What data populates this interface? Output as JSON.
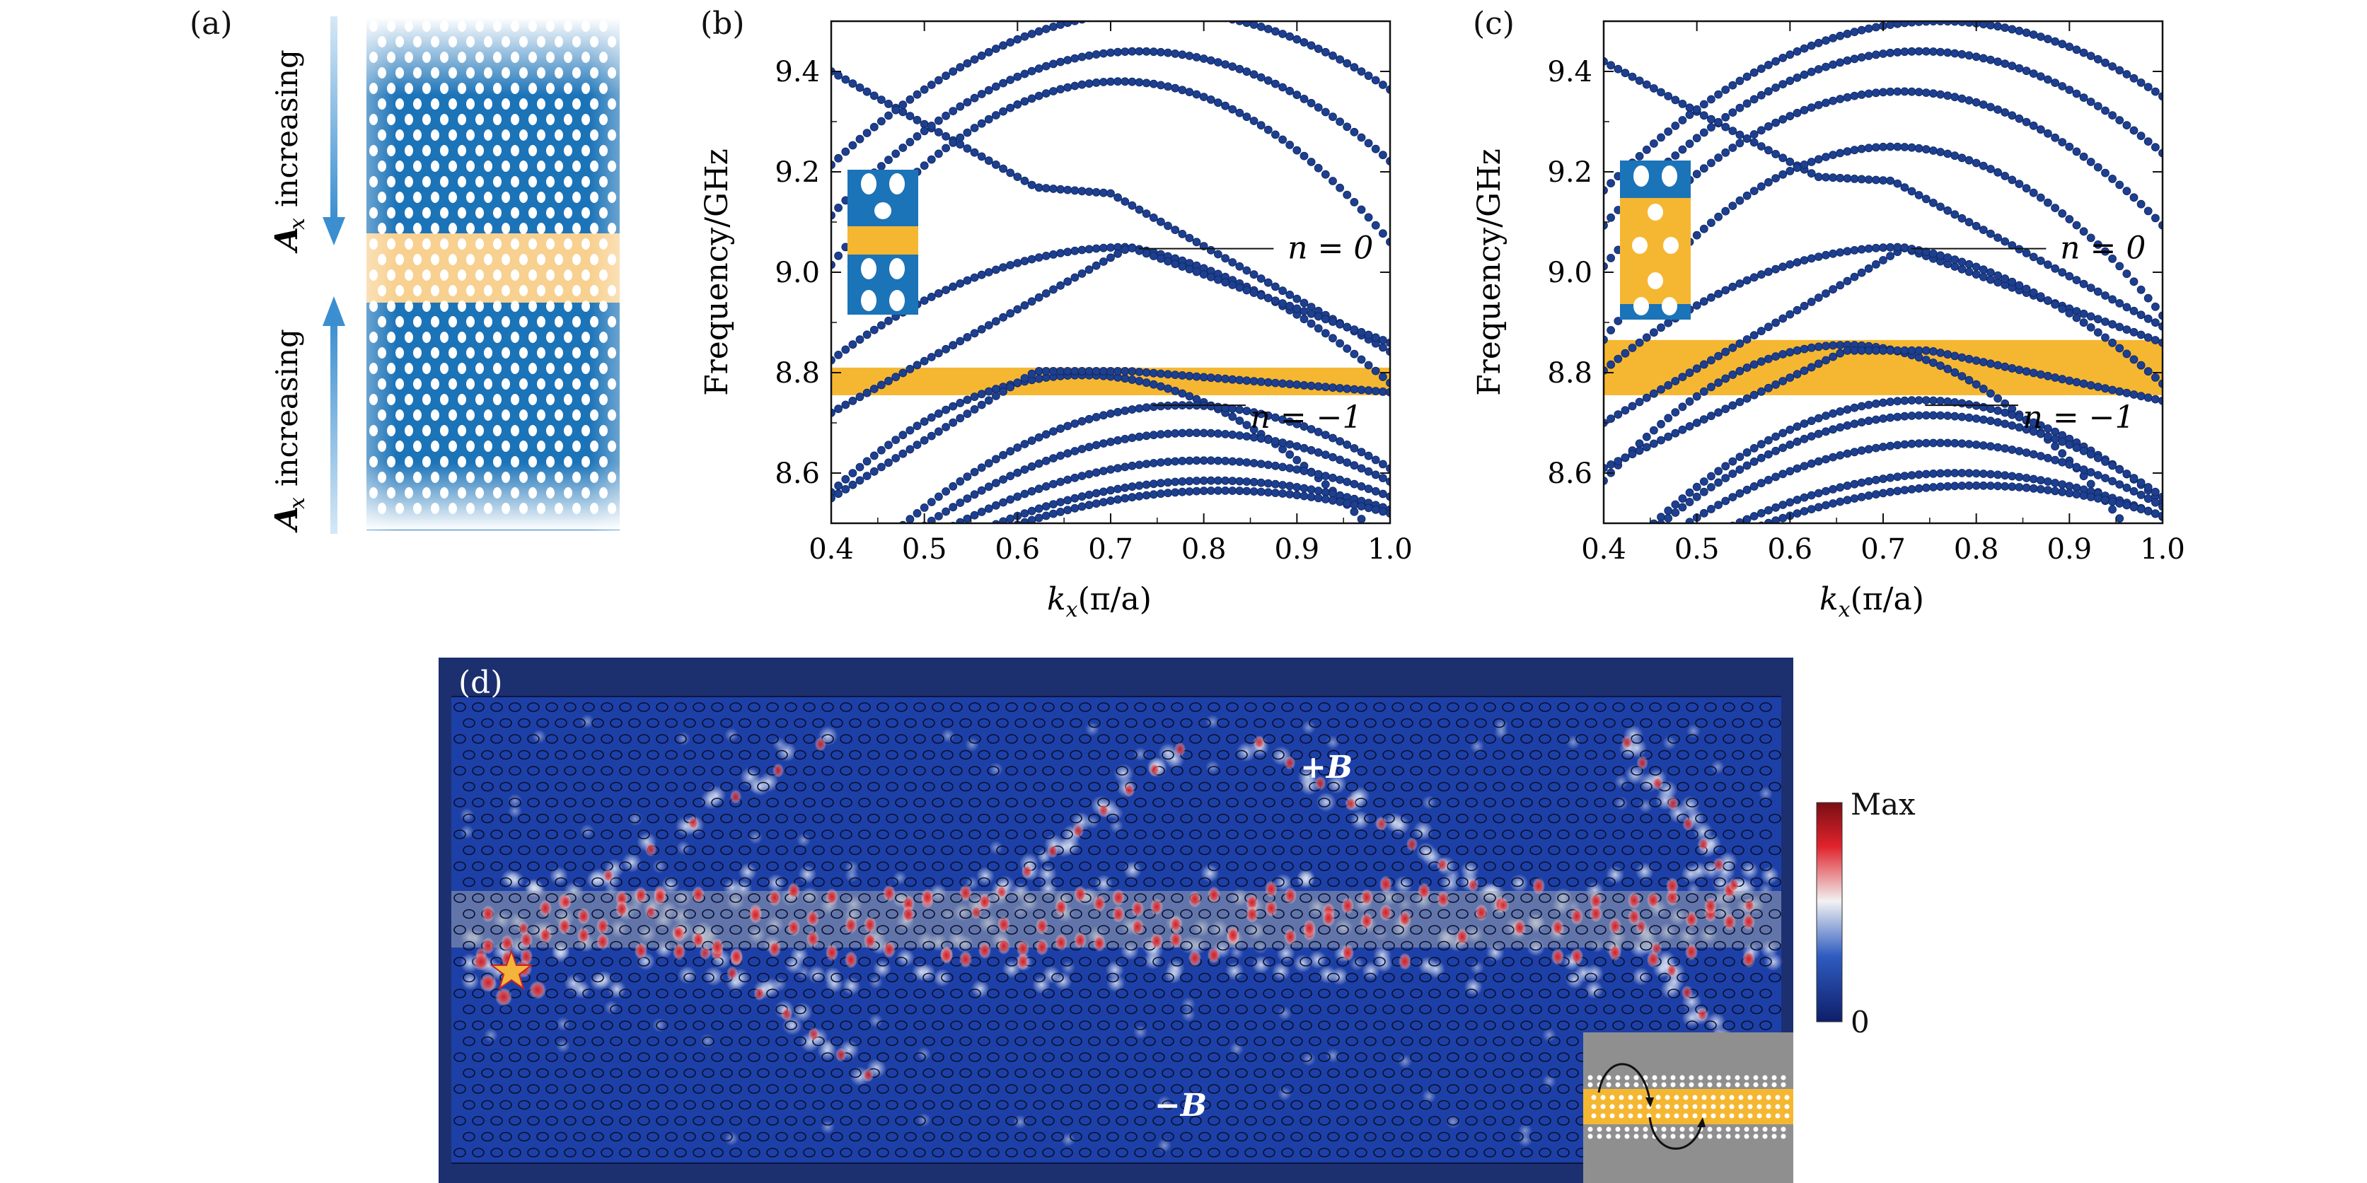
{
  "panel_a": {
    "label": "(a)",
    "top_arrow_text": "increasing",
    "top_arrow_sym": "A",
    "top_arrow_sub": "x",
    "bottom_arrow_text": "increasing",
    "bottom_arrow_sym": "A",
    "bottom_arrow_sub": "x",
    "colors": {
      "blue": "#1b73b8",
      "orange": "#f8d08f",
      "arrow": "#3b8fd0"
    }
  },
  "chart_data": [
    {
      "panel": "(b)",
      "type": "scatter",
      "xlabel_sym": "k",
      "xlabel_sub": "x",
      "xlabel_rest": "(π/a)",
      "ylabel": "Frequency/GHz",
      "xlim": [
        0.4,
        1.0
      ],
      "ylim": [
        8.5,
        9.5
      ],
      "xticks": [
        "0.4",
        "0.5",
        "0.6",
        "0.7",
        "0.8",
        "0.9",
        "1.0"
      ],
      "yticks": [
        "8.6",
        "8.8",
        "9.0",
        "9.2",
        "9.4"
      ],
      "gap": [
        8.755,
        8.81
      ],
      "annotations": [
        {
          "text": "n = 0",
          "y": 9.047
        },
        {
          "text": "n = −1",
          "y": 8.735
        }
      ],
      "band_color": "#1d3f8f",
      "gap_color": "#f5b731"
    },
    {
      "panel": "(c)",
      "type": "scatter",
      "xlabel_sym": "k",
      "xlabel_sub": "x",
      "xlabel_rest": "(π/a)",
      "ylabel": "Frequency/GHz",
      "xlim": [
        0.4,
        1.0
      ],
      "ylim": [
        8.5,
        9.5
      ],
      "xticks": [
        "0.4",
        "0.5",
        "0.6",
        "0.7",
        "0.8",
        "0.9",
        "1.0"
      ],
      "yticks": [
        "8.6",
        "8.8",
        "9.0",
        "9.2",
        "9.4"
      ],
      "gap": [
        8.755,
        8.865
      ],
      "annotations": [
        {
          "text": "n = 0",
          "y": 9.047
        },
        {
          "text": "n = −1",
          "y": 8.735
        }
      ],
      "band_color": "#1d3f8f",
      "gap_color": "#f5b731"
    }
  ],
  "panel_d": {
    "label": "(d)",
    "plus_b": "+B",
    "minus_b": "−B",
    "colorbar_max": "Max",
    "colorbar_min": "0",
    "colors": {
      "bg": "#1c2f6e",
      "field": "#1d40a8",
      "hot": "#c8202a",
      "strip": "#9aa0ad",
      "star": "#f2b43a"
    }
  }
}
